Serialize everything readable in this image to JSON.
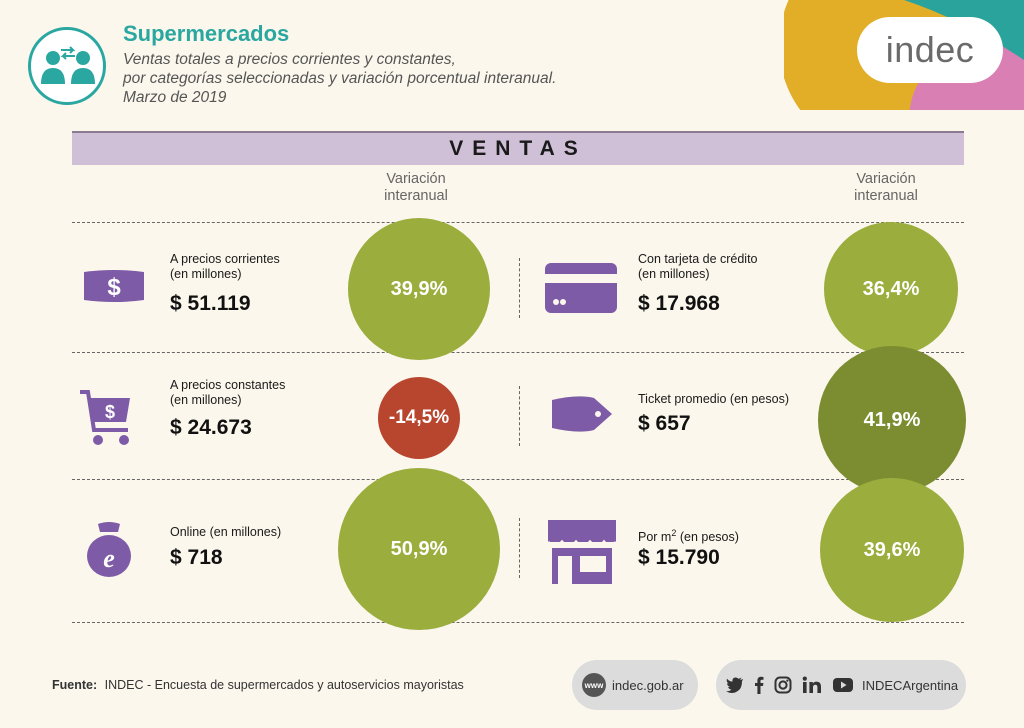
{
  "header": {
    "title": "Supermercados",
    "subtitle_line1": "Ventas totales a precios corrientes y constantes,",
    "subtitle_line2": "por categorías seleccionadas y variación porcentual interanual.",
    "subtitle_line3": "Marzo de 2019",
    "logo": "indec"
  },
  "section_title": "VENTAS",
  "variation_label_line1": "Variación",
  "variation_label_line2": "interanual",
  "left_items": [
    {
      "icon": "banknote-icon",
      "label_line1": "A precios corrientes",
      "label_line2": "(en millones)",
      "value": "$ 51.119",
      "variation": "39,9%"
    },
    {
      "icon": "shopping-cart-icon",
      "label_line1": "A precios constantes",
      "label_line2": "(en millones)",
      "value": "$ 24.673",
      "variation": "-14,5%"
    },
    {
      "icon": "online-bag-icon",
      "label_line1": "Online (en millones)",
      "label_line2": "",
      "value": "$ 718",
      "variation": "50,9%"
    }
  ],
  "right_items": [
    {
      "icon": "credit-card-icon",
      "label_line1": "Con tarjeta de crédito",
      "label_line2": "(en millones)",
      "value": "$ 17.968",
      "variation": "36,4%"
    },
    {
      "icon": "price-tag-icon",
      "label_line1": "Ticket promedio (en pesos)",
      "label_line2": "",
      "value": "$ 657",
      "variation": "41,9%"
    },
    {
      "icon": "storefront-icon",
      "label_line1": "Por m",
      "label_sup": "2",
      "label_line1_suffix": " (en pesos)",
      "value": "$ 15.790",
      "variation": "39,6%"
    }
  ],
  "footer": {
    "source_label": "Fuente:",
    "source_text": "INDEC - Encuesta de supermercados y autoservicios mayoristas",
    "website_badge": "www",
    "website": "indec.gob.ar",
    "social_handle": "INDECArgentina"
  },
  "colors": {
    "teal": "#2aa7a0",
    "purple": "#7d5ba6",
    "green": "#9aad3d",
    "red": "#b8452d",
    "lavender": "#cfc0d8"
  }
}
